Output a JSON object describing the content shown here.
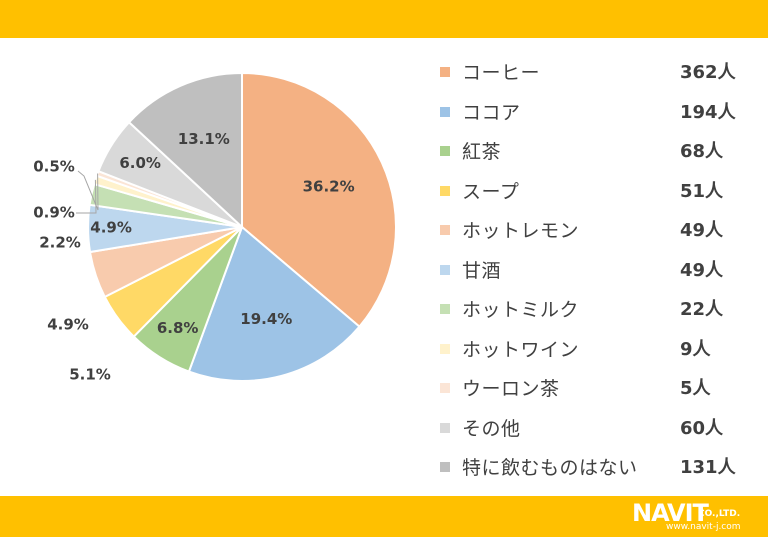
{
  "colors": {
    "banner": "#FFC000",
    "text": "#404040",
    "leader": "#A6A6A6"
  },
  "chart_data": {
    "type": "pie",
    "title": "",
    "start_angle_deg": 0,
    "direction": "clockwise",
    "slices": [
      {
        "label": "コーヒー",
        "count": "362人",
        "percent_label": "36.2%",
        "value": 36.2,
        "color": "#F4B183"
      },
      {
        "label": "ココア",
        "count": "194人",
        "percent_label": "19.4%",
        "value": 19.4,
        "color": "#9DC3E6"
      },
      {
        "label": "紅茶",
        "count": "68人",
        "percent_label": "6.8%",
        "value": 6.8,
        "color": "#A9D18E"
      },
      {
        "label": "スープ",
        "count": "51人",
        "percent_label": "5.1%",
        "value": 5.1,
        "color": "#FFD966"
      },
      {
        "label": "ホットレモン",
        "count": "49人",
        "percent_label": "4.9%",
        "value": 4.9,
        "color": "#F8CBAD"
      },
      {
        "label": "甘酒",
        "count": "49人",
        "percent_label": "4.9%",
        "value": 4.9,
        "color": "#BDD7EE"
      },
      {
        "label": "ホットミルク",
        "count": "22人",
        "percent_label": "2.2%",
        "value": 2.2,
        "color": "#C5E0B4"
      },
      {
        "label": "ホットワイン",
        "count": "9人",
        "percent_label": "0.9%",
        "value": 0.9,
        "color": "#FFF2CC"
      },
      {
        "label": "ウーロン茶",
        "count": "5人",
        "percent_label": "0.5%",
        "value": 0.5,
        "color": "#FBE5D6"
      },
      {
        "label": "その他",
        "count": "60人",
        "percent_label": "6.0%",
        "value": 6.0,
        "color": "#D9D9D9"
      },
      {
        "label": "特に飲むものはない",
        "count": "131人",
        "percent_label": "13.1%",
        "value": 13.1,
        "color": "#BFBFBF"
      }
    ]
  },
  "logo": {
    "main": "NAVIT",
    "suffix": "CO.,LTD.",
    "url": "www.navit-j.com"
  }
}
